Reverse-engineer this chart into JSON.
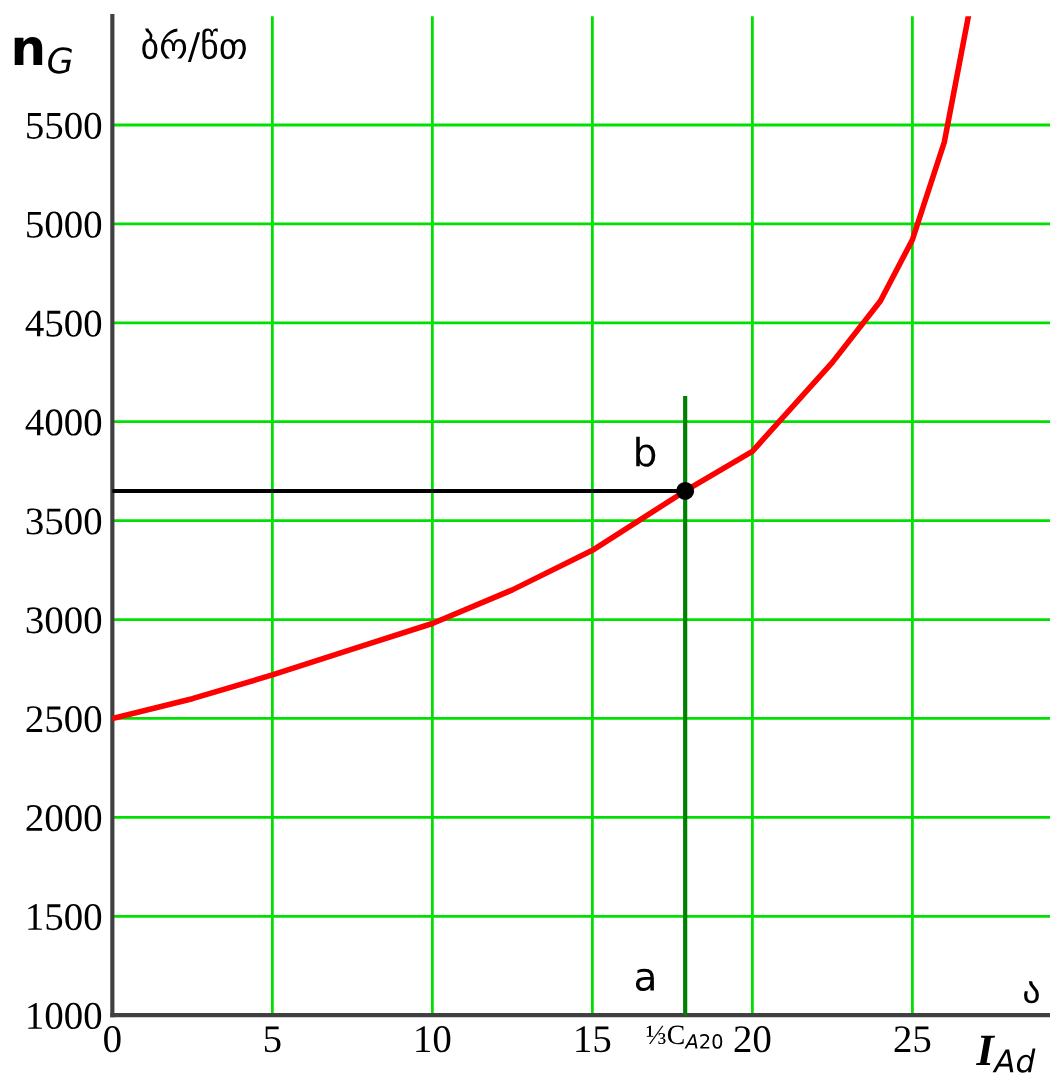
{
  "chart_data": {
    "type": "line",
    "ylabel": "n$_{G}$",
    "xlabel": "I$_{Ad}$",
    "xlim": [
      0,
      29.3
    ],
    "ylim": [
      1000,
      6050
    ],
    "xticks": [
      0,
      5,
      10,
      15,
      {
        "value": 17.9,
        "label": "⅓C$_{A20}$"
      },
      20,
      25
    ],
    "yticks": [
      1000,
      1500,
      2000,
      2500,
      3000,
      3500,
      4000,
      4500,
      5000,
      5500
    ],
    "grid": true,
    "legend": false,
    "marker": "none",
    "line_style": "solid",
    "series": [
      {
        "color": "#ff0000",
        "x": [
          0,
          2.5,
          5,
          7.5,
          10,
          12.5,
          15,
          17.9,
          20,
          22.5,
          24,
          25,
          26,
          26.75
        ],
        "values": [
          2500,
          2600,
          2720,
          2850,
          2980,
          3150,
          3350,
          3650,
          3850,
          4300,
          4610,
          4920,
          5415,
          6050
        ]
      },
      {
        "color": "#000000",
        "x": [
          0,
          17.9
        ],
        "values": [
          3650,
          3650
        ]
      },
      {
        "color": "#008000",
        "x": [
          17.9,
          17.9
        ],
        "values": [
          1000,
          4120
        ]
      },
      {
        "type": "scatter",
        "marker": "circle",
        "color": "#000000",
        "x": [
          17.9
        ],
        "values": [
          3650
        ]
      }
    ],
    "annotations": [
      "ბრ/წთ",
      "ა",
      {
        "text": "a",
        "x": 17.9,
        "y": 1000
      },
      {
        "text": "b",
        "x": 17.9,
        "y": 3650
      }
    ]
  }
}
